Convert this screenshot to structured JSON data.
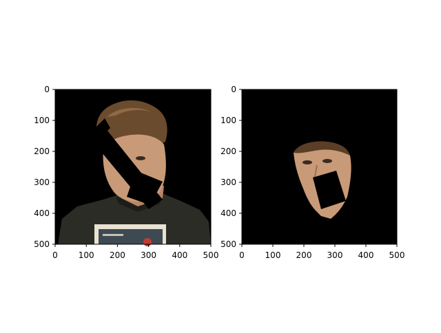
{
  "panels": [
    {
      "name": "full-masked-image",
      "x_ticks": [
        "0",
        "100",
        "200",
        "300",
        "400",
        "500"
      ],
      "y_ticks": [
        "0",
        "100",
        "200",
        "300",
        "400",
        "500"
      ],
      "content": "person photo with background masked to black and a rotated black occlusion rectangle"
    },
    {
      "name": "face-region-image",
      "x_ticks": [
        "0",
        "100",
        "200",
        "300",
        "400",
        "500"
      ],
      "y_ticks": [
        "0",
        "100",
        "200",
        "300",
        "400",
        "500"
      ],
      "content": "face skin region only with rotated black occlusion rectangle"
    }
  ],
  "colors": {
    "background": "#000000",
    "skin": "#c99a78",
    "hair": "#6a4a2c",
    "shirt": "#2a2b25",
    "book": "#ece6d8"
  }
}
